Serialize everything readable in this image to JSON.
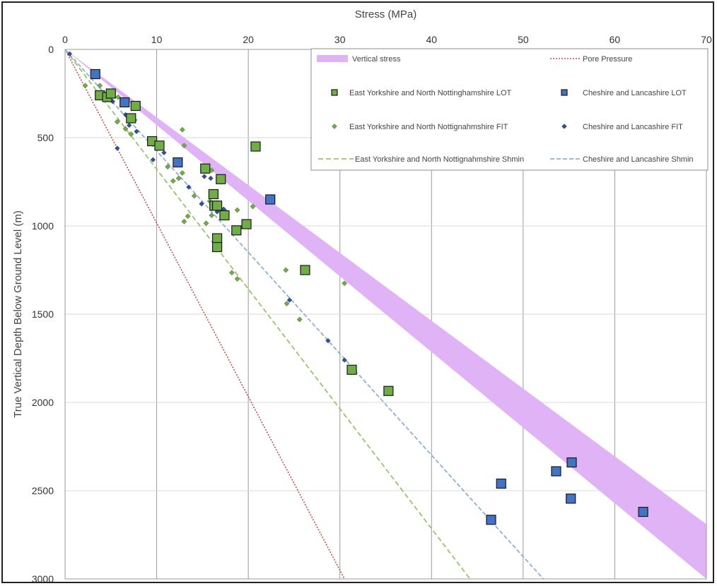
{
  "chart_data": {
    "type": "scatter",
    "title": "",
    "xlabel": "Stress (MPa)",
    "ylabel": "True Vertical Depth Below Ground Level (m)",
    "xlim": [
      0,
      70
    ],
    "ylim": [
      0,
      3000
    ],
    "y_inverted": true,
    "x_ticks": [
      "0",
      "10",
      "20",
      "30",
      "40",
      "50",
      "60",
      "70"
    ],
    "y_ticks": [
      "0",
      "500",
      "1000",
      "1500",
      "2000",
      "2500",
      "3000"
    ],
    "grid": "vertical",
    "x_axis_position": "top",
    "legend_position": "top-right",
    "legend": [
      {
        "name": "Vertical stress",
        "kind": "band"
      },
      {
        "name": "Pore Pressure",
        "kind": "line"
      },
      {
        "name": "East Yorkshire and North Nottinghamshire LOT",
        "kind": "square"
      },
      {
        "name": "Cheshire and Lancashire LOT",
        "kind": "square"
      },
      {
        "name": "East Yorkshire and North Nottignahmshire FIT",
        "kind": "diamond"
      },
      {
        "name": "Cheshire and Lancashire FIT",
        "kind": "diamond"
      },
      {
        "name": "East Yorkshire and North Nottignahmshire Shmin",
        "kind": "line"
      },
      {
        "name": "Cheshire and Lancashire Shmin",
        "kind": "line"
      }
    ],
    "colors": {
      "vertical_stress": "#e0b3f7",
      "pore_pressure": "#c0504d",
      "ey_lot": "#70ad47",
      "cl_lot": "#4472c4",
      "ey_fit": "#70ad47",
      "cl_fit": "#2e4fa3",
      "ey_shmin": "#9bc26d",
      "cl_shmin": "#8fb0d6"
    },
    "vertical_stress_band": {
      "upper": [
        [
          0,
          0
        ],
        [
          70,
          2690
        ]
      ],
      "lower": [
        [
          0,
          0
        ],
        [
          70,
          3000
        ]
      ]
    },
    "pore_pressure_line": [
      [
        0,
        0
      ],
      [
        30.5,
        3000
      ]
    ],
    "ey_shmin_line": [
      [
        0,
        0
      ],
      [
        44.2,
        3000
      ]
    ],
    "cl_shmin_line": [
      [
        0,
        0
      ],
      [
        52.2,
        3000
      ]
    ],
    "ey_lot": [
      [
        3.8,
        260
      ],
      [
        4.6,
        270
      ],
      [
        5.0,
        250
      ],
      [
        7.7,
        320
      ],
      [
        7.2,
        390
      ],
      [
        9.5,
        520
      ],
      [
        10.3,
        545
      ],
      [
        20.8,
        550
      ],
      [
        15.3,
        675
      ],
      [
        17.0,
        735
      ],
      [
        16.2,
        820
      ],
      [
        16.3,
        885
      ],
      [
        16.6,
        885
      ],
      [
        17.4,
        940
      ],
      [
        19.8,
        990
      ],
      [
        18.7,
        1025
      ],
      [
        16.6,
        1070
      ],
      [
        16.6,
        1120
      ],
      [
        26.2,
        1250
      ],
      [
        31.3,
        1815
      ],
      [
        35.3,
        1935
      ]
    ],
    "cl_lot": [
      [
        3.3,
        140
      ],
      [
        6.5,
        300
      ],
      [
        12.3,
        640
      ],
      [
        22.4,
        850
      ],
      [
        55.3,
        2340
      ],
      [
        53.6,
        2390
      ],
      [
        47.6,
        2460
      ],
      [
        55.2,
        2545
      ],
      [
        63.1,
        2620
      ],
      [
        46.5,
        2665
      ]
    ],
    "ey_fit": [
      [
        2.2,
        205
      ],
      [
        3.8,
        205
      ],
      [
        4.3,
        255
      ],
      [
        4.7,
        240
      ],
      [
        5.2,
        245
      ],
      [
        5.8,
        270
      ],
      [
        5.7,
        410
      ],
      [
        6.6,
        450
      ],
      [
        7.2,
        480
      ],
      [
        7.6,
        400
      ],
      [
        11.2,
        665
      ],
      [
        11.8,
        745
      ],
      [
        12.4,
        730
      ],
      [
        12.8,
        700
      ],
      [
        12.8,
        455
      ],
      [
        13.0,
        545
      ],
      [
        15.4,
        690
      ],
      [
        16.0,
        685
      ],
      [
        14.1,
        830
      ],
      [
        15.8,
        860
      ],
      [
        13.4,
        945
      ],
      [
        13.0,
        975
      ],
      [
        15.4,
        985
      ],
      [
        16.0,
        940
      ],
      [
        17.4,
        910
      ],
      [
        18.8,
        910
      ],
      [
        20.5,
        890
      ],
      [
        18.2,
        1265
      ],
      [
        18.8,
        1300
      ],
      [
        24.1,
        1250
      ],
      [
        24.2,
        1440
      ],
      [
        25.6,
        1530
      ],
      [
        30.5,
        1325
      ]
    ],
    "cl_fit": [
      [
        0.5,
        25
      ],
      [
        4.5,
        255
      ],
      [
        5.1,
        235
      ],
      [
        5.2,
        295
      ],
      [
        6.6,
        370
      ],
      [
        7.0,
        430
      ],
      [
        7.8,
        465
      ],
      [
        9.6,
        625
      ],
      [
        10.8,
        585
      ],
      [
        13.5,
        780
      ],
      [
        15.2,
        720
      ],
      [
        15.9,
        730
      ],
      [
        14.9,
        875
      ],
      [
        16.6,
        920
      ],
      [
        17.3,
        905
      ],
      [
        24.5,
        1420
      ],
      [
        28.7,
        1650
      ],
      [
        30.5,
        1760
      ],
      [
        5.7,
        560
      ]
    ]
  }
}
